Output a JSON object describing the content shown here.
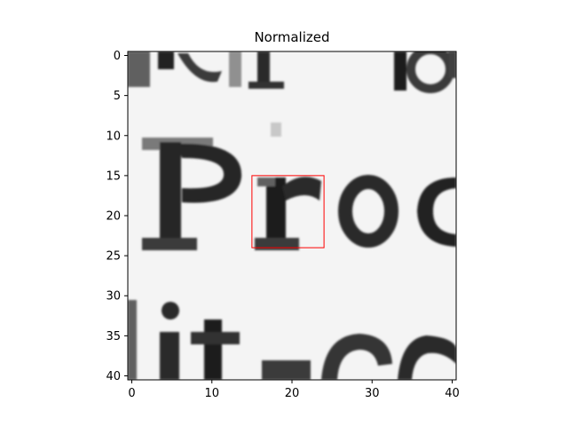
{
  "chart_data": {
    "type": "heatmap",
    "title": "Normalized",
    "colormap": "gray",
    "x_ticks": [
      0,
      10,
      20,
      30,
      40
    ],
    "y_ticks": [
      0,
      5,
      10,
      15,
      20,
      25,
      30,
      35,
      40
    ],
    "xlim": [
      -0.5,
      40.5
    ],
    "ylim": [
      40.5,
      -0.5
    ],
    "grid": false,
    "image_content": "grayscale crop of printed text showing letters 'Pro' on the middle row with partial lines above and below",
    "highlight_box": {
      "x": 15,
      "y": 15,
      "width": 9,
      "height": 9,
      "color": "#ff0000"
    }
  }
}
